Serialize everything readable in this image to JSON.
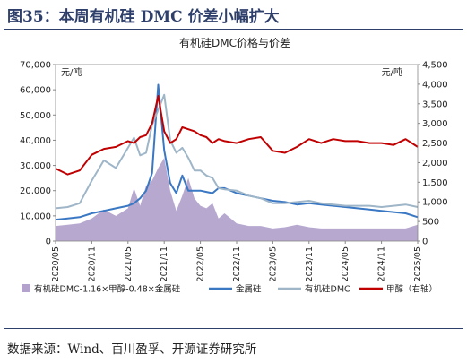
{
  "figure": {
    "title": "图35：本周有机硅 DMC 价差小幅扩大",
    "source": "数据来源：Wind、百川盈孚、开源证券研究所"
  },
  "chart_data": {
    "type": "area+line",
    "title": "有机硅DMC价格与价差",
    "left_unit": "元/吨",
    "right_unit": "元/吨",
    "y_left": {
      "min": 0,
      "max": 70000,
      "ticks": [
        0,
        10000,
        20000,
        30000,
        40000,
        50000,
        60000,
        70000
      ]
    },
    "y_right": {
      "min": 0,
      "max": 4500,
      "ticks": [
        0,
        500,
        1000,
        1500,
        2000,
        2500,
        3000,
        3500,
        4000,
        4500
      ]
    },
    "x_tick_labels": [
      "2020/05",
      "2020/11",
      "2021/05",
      "2021/11",
      "2022/05",
      "2022/11",
      "2023/05",
      "2023/11",
      "2024/05",
      "2024/11",
      "2025/05"
    ],
    "x": [
      "2020/05",
      "2020/07",
      "2020/09",
      "2020/11",
      "2021/01",
      "2021/03",
      "2021/05",
      "2021/06",
      "2021/07",
      "2021/08",
      "2021/09",
      "2021/10",
      "2021/11",
      "2021/12",
      "2022/01",
      "2022/02",
      "2022/03",
      "2022/04",
      "2022/05",
      "2022/06",
      "2022/07",
      "2022/08",
      "2022/09",
      "2022/11",
      "2023/01",
      "2023/03",
      "2023/05",
      "2023/07",
      "2023/09",
      "2023/11",
      "2024/01",
      "2024/03",
      "2024/05",
      "2024/07",
      "2024/09",
      "2024/11",
      "2025/01",
      "2025/03",
      "2025/05"
    ],
    "series": [
      {
        "name": "有机硅DMC-1.16×甲醇-0.48×金属硅",
        "kind": "area",
        "axis": "left",
        "color": "#b3a3cc",
        "values": [
          6000,
          6500,
          7000,
          9000,
          12500,
          10000,
          13000,
          21000,
          14000,
          22000,
          24000,
          29000,
          33000,
          20000,
          12000,
          18000,
          25000,
          17000,
          14000,
          13000,
          15000,
          9000,
          11000,
          7000,
          6000,
          6000,
          5000,
          5500,
          6500,
          5500,
          5000,
          5000,
          5000,
          5000,
          5000,
          5000,
          5000,
          5000,
          6500
        ]
      },
      {
        "name": "金属硅",
        "kind": "line",
        "axis": "left",
        "color": "#3b78c3",
        "values": [
          8500,
          9000,
          9500,
          11000,
          12000,
          13000,
          14000,
          15000,
          17000,
          20000,
          27000,
          62000,
          36000,
          23000,
          19000,
          26000,
          20000,
          20000,
          20000,
          19500,
          19000,
          21000,
          21000,
          19000,
          18000,
          17000,
          16000,
          15500,
          14500,
          15000,
          14500,
          14000,
          13500,
          13000,
          12500,
          12000,
          11500,
          11000,
          9500
        ]
      },
      {
        "name": "有机硅DMC",
        "kind": "line",
        "axis": "left",
        "color": "#9fb6c8",
        "values": [
          13000,
          13500,
          15000,
          24000,
          32000,
          29000,
          37000,
          41000,
          34000,
          35000,
          46000,
          52000,
          58000,
          40000,
          35000,
          37000,
          33000,
          28000,
          28000,
          26000,
          25000,
          21000,
          20500,
          20000,
          18000,
          17000,
          15000,
          15000,
          15500,
          16000,
          15000,
          14500,
          14000,
          14000,
          14000,
          13500,
          14000,
          14500,
          13500
        ]
      },
      {
        "name": "甲醇（右轴）",
        "kind": "line",
        "axis": "right",
        "color": "#c00000",
        "values": [
          1850,
          1700,
          1800,
          2200,
          2350,
          2400,
          2550,
          2500,
          2650,
          2700,
          3000,
          3700,
          2800,
          2500,
          2600,
          2900,
          2850,
          2800,
          2700,
          2650,
          2500,
          2600,
          2550,
          2500,
          2600,
          2650,
          2300,
          2250,
          2400,
          2600,
          2500,
          2600,
          2550,
          2550,
          2500,
          2500,
          2450,
          2600,
          2400
        ]
      }
    ]
  }
}
